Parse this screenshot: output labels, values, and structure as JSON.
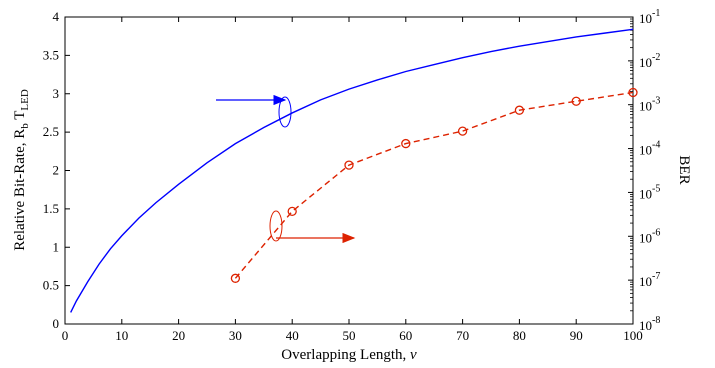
{
  "chart_data": {
    "type": "line",
    "xlabel_main": "Overlapping Length, ",
    "xlabel_var": "v",
    "ylabel_left": {
      "main": "Relative Bit-Rate, R",
      "sub": "b",
      "mid": " T",
      "sub2": "LED"
    },
    "ylabel_right": "BER",
    "xlim": [
      0,
      100
    ],
    "xticks": [
      0,
      10,
      20,
      30,
      40,
      50,
      60,
      70,
      80,
      90,
      100
    ],
    "xtick_labels": [
      "0",
      "10",
      "20",
      "30",
      "40",
      "50",
      "60",
      "70",
      "80",
      "90",
      "100"
    ],
    "ylim_left": [
      0,
      4
    ],
    "yticks_left": [
      0,
      0.5,
      1,
      1.5,
      2,
      2.5,
      3,
      3.5,
      4
    ],
    "ytick_labels_left": [
      "0",
      "0.5",
      "1",
      "1.5",
      "2",
      "2.5",
      "3",
      "3.5",
      "4"
    ],
    "yscale_right": "log",
    "ylim_right": [
      1e-08,
      0.1
    ],
    "yticks_right_exponents": [
      -8,
      -7,
      -6,
      -5,
      -4,
      -3,
      -2,
      -1
    ],
    "ytick_base": "10",
    "ytick_exponent_labels": [
      "-8",
      "-7",
      "-6",
      "-5",
      "-4",
      "-3",
      "-2",
      "-1"
    ],
    "grid": false,
    "series": [
      {
        "axis": "left",
        "color": "#0000ff",
        "style": "solid",
        "x": [
          1,
          2,
          4,
          6,
          8,
          10,
          13,
          16,
          20,
          25,
          30,
          35,
          40,
          45,
          50,
          55,
          60,
          65,
          70,
          75,
          80,
          85,
          90,
          95,
          100
        ],
        "y": [
          0.15,
          0.3,
          0.55,
          0.78,
          0.98,
          1.15,
          1.38,
          1.58,
          1.82,
          2.1,
          2.35,
          2.56,
          2.75,
          2.92,
          3.06,
          3.18,
          3.29,
          3.38,
          3.47,
          3.55,
          3.62,
          3.68,
          3.74,
          3.79,
          3.84
        ]
      },
      {
        "axis": "right",
        "color": "#dd2200",
        "style": "dashed",
        "marker": "circle",
        "x": [
          30,
          40,
          50,
          60,
          70,
          80,
          90,
          100
        ],
        "y": [
          1.1e-07,
          3.7e-06,
          4.2e-05,
          0.00013,
          0.00025,
          0.00075,
          0.0012,
          0.0019
        ]
      }
    ],
    "annotations": [
      {
        "type": "arrow",
        "direction": "left",
        "color": "#0000ff",
        "points_to": "left-axis",
        "near_x": 38
      },
      {
        "type": "arrow",
        "direction": "right",
        "color": "#dd2200",
        "points_to": "right-axis",
        "near_x": 37
      }
    ]
  }
}
